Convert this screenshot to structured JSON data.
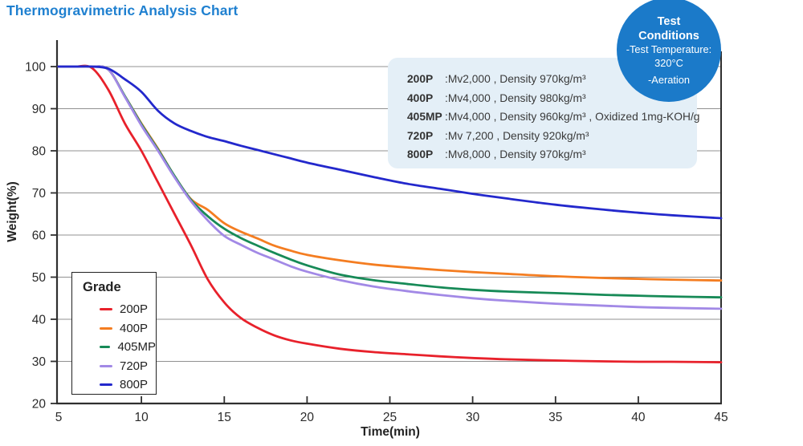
{
  "title": "Thermogravimetric Analysis Chart",
  "colors": {
    "title_text": "#1f80d0",
    "badge_bg": "#1b7ac9",
    "panel_bg": "#e4eff7",
    "axis": "#2f2f2f",
    "grid": "#909090",
    "tick_text": "#2b2b2b"
  },
  "chart_data": {
    "type": "line",
    "title": "Thermogravimetric Analysis Chart",
    "xlabel": "Time(min)",
    "ylabel": "Weight(%)",
    "xlim": [
      5,
      45
    ],
    "ylim": [
      20,
      100
    ],
    "xticks": [
      5,
      10,
      15,
      20,
      25,
      30,
      35,
      40,
      45
    ],
    "yticks": [
      20,
      30,
      40,
      50,
      60,
      70,
      80,
      90,
      100
    ],
    "grid": "horizontal-only",
    "legend_position": "lower-left",
    "legend_title": "Grade",
    "x": [
      5,
      6,
      7,
      8,
      9,
      10,
      11,
      12,
      13,
      14,
      15,
      16,
      17,
      18,
      19,
      20,
      22,
      24,
      26,
      28,
      30,
      32,
      35,
      38,
      40,
      42,
      45
    ],
    "series": [
      {
        "name": "200P",
        "color": "#e8212b",
        "values": [
          100,
          100,
          99.7,
          94.5,
          86.5,
          80,
          72.5,
          65,
          57.5,
          49.5,
          44,
          40.3,
          38,
          36.2,
          35,
          34.2,
          33,
          32.2,
          31.7,
          31.2,
          30.8,
          30.5,
          30.2,
          30,
          29.9,
          29.9,
          29.8
        ]
      },
      {
        "name": "400P",
        "color": "#f47d21",
        "values": [
          100,
          100,
          100,
          99.3,
          93,
          86.5,
          80.5,
          74,
          68.5,
          66,
          62.8,
          60.8,
          59.2,
          57.5,
          56.3,
          55.3,
          54,
          53,
          52.3,
          51.7,
          51.2,
          50.8,
          50.2,
          49.8,
          49.6,
          49.4,
          49.2
        ]
      },
      {
        "name": "405MP",
        "color": "#178a57",
        "values": [
          100,
          100,
          100,
          99.3,
          93,
          86.3,
          80.3,
          74,
          68.3,
          64.5,
          61.5,
          59.3,
          57.5,
          55.8,
          54.2,
          52.8,
          50.6,
          49.3,
          48.4,
          47.6,
          47,
          46.6,
          46.2,
          45.8,
          45.6,
          45.4,
          45.2
        ]
      },
      {
        "name": "720P",
        "color": "#a289e6",
        "values": [
          100,
          100,
          100,
          99.3,
          92.8,
          86,
          80,
          73.7,
          68,
          63.5,
          59.8,
          57.7,
          55.8,
          54.2,
          52.6,
          51.3,
          49.3,
          47.8,
          46.7,
          45.8,
          45,
          44.4,
          43.7,
          43.2,
          42.9,
          42.7,
          42.5
        ]
      },
      {
        "name": "800P",
        "color": "#2328cc",
        "values": [
          100,
          100,
          100,
          99.5,
          97,
          94,
          89.5,
          86.5,
          84.7,
          83.3,
          82.3,
          81.2,
          80.2,
          79.2,
          78.2,
          77.2,
          75.5,
          73.8,
          72.2,
          71,
          69.8,
          68.7,
          67.2,
          66,
          65.3,
          64.7,
          64
        ]
      }
    ]
  },
  "legend": {
    "title": "Grade"
  },
  "info_panel": {
    "rows": [
      {
        "grade": "200P",
        "spec": ":Mv2,000 , Density 970kg/m³"
      },
      {
        "grade": "400P",
        "spec": ":Mv4,000 , Density 980kg/m³"
      },
      {
        "grade": "405MP",
        "spec": ":Mv4,000 , Density 960kg/m³ , Oxidized 1mg-KOH/g"
      },
      {
        "grade": "720P",
        "spec": ":Mv 7,200 , Density 920kg/m³"
      },
      {
        "grade": "800P",
        "spec": ":Mv8,000 , Density 970kg/m³"
      }
    ]
  },
  "badge": {
    "title_line1": "Test",
    "title_line2": "Conditions",
    "lines": [
      "-Test Temperature:",
      "320°C",
      "-Aeration"
    ]
  }
}
